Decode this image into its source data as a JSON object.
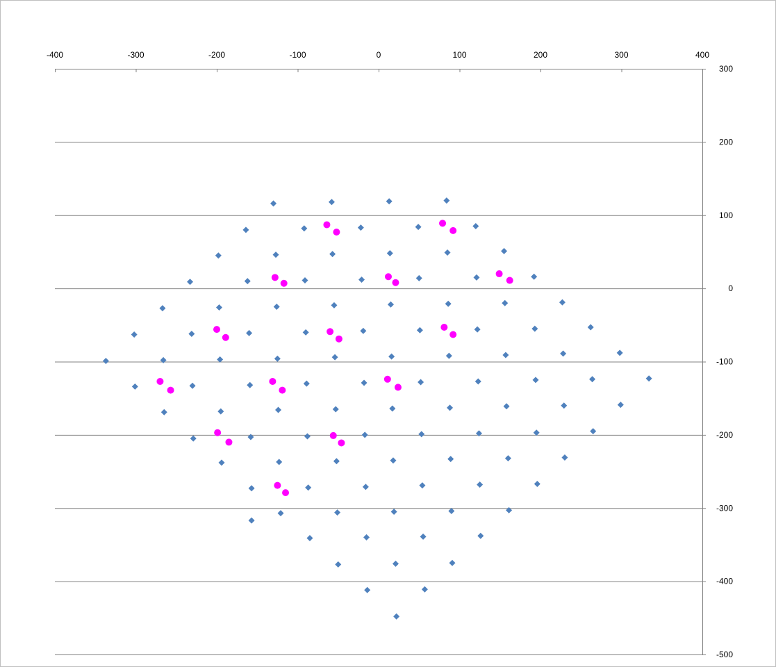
{
  "chart_data": {
    "type": "scatter",
    "title": "",
    "xlabel": "",
    "ylabel": "",
    "xlim": [
      -400,
      400
    ],
    "ylim": [
      -500,
      300
    ],
    "x_ticks": [
      -400,
      -300,
      -200,
      -100,
      0,
      100,
      200,
      300,
      400
    ],
    "y_ticks": [
      300,
      200,
      100,
      0,
      -100,
      -200,
      -300,
      -400,
      -500
    ],
    "x_axis_position": "top",
    "y_axis_position": "right",
    "grid": "horizontal",
    "legend": "none",
    "colors": {
      "series_blue": "#4f81bd",
      "series_magenta": "#ff00ff",
      "gridline": "#808080",
      "axis": "#808080"
    },
    "series": [
      {
        "marker": "diamond",
        "color": "#4f81bd",
        "points": [
          [
            -130,
            116
          ],
          [
            -58,
            118
          ],
          [
            13,
            119
          ],
          [
            84,
            120
          ],
          [
            -164,
            80
          ],
          [
            -92,
            82
          ],
          [
            -22,
            83
          ],
          [
            49,
            84
          ],
          [
            120,
            85
          ],
          [
            -198,
            45
          ],
          [
            -127,
            46
          ],
          [
            -57,
            47
          ],
          [
            14,
            48
          ],
          [
            85,
            49
          ],
          [
            155,
            51
          ],
          [
            -233,
            9
          ],
          [
            -162,
            10
          ],
          [
            -91,
            11
          ],
          [
            -21,
            12
          ],
          [
            50,
            14
          ],
          [
            121,
            15
          ],
          [
            192,
            16
          ],
          [
            -267,
            -27
          ],
          [
            -197,
            -26
          ],
          [
            -126,
            -25
          ],
          [
            -55,
            -23
          ],
          [
            15,
            -22
          ],
          [
            86,
            -21
          ],
          [
            156,
            -20
          ],
          [
            227,
            -19
          ],
          [
            -302,
            -63
          ],
          [
            -231,
            -62
          ],
          [
            -160,
            -61
          ],
          [
            -90,
            -60
          ],
          [
            -19,
            -58
          ],
          [
            51,
            -57
          ],
          [
            122,
            -56
          ],
          [
            193,
            -55
          ],
          [
            262,
            -53
          ],
          [
            -337,
            -99
          ],
          [
            -266,
            -98
          ],
          [
            -196,
            -97
          ],
          [
            -125,
            -96
          ],
          [
            -54,
            -94
          ],
          [
            16,
            -93
          ],
          [
            87,
            -92
          ],
          [
            157,
            -91
          ],
          [
            228,
            -89
          ],
          [
            298,
            -88
          ],
          [
            -301,
            -134
          ],
          [
            -230,
            -133
          ],
          [
            -159,
            -132
          ],
          [
            -89,
            -130
          ],
          [
            -18,
            -129
          ],
          [
            52,
            -128
          ],
          [
            123,
            -127
          ],
          [
            194,
            -125
          ],
          [
            264,
            -124
          ],
          [
            334,
            -123
          ],
          [
            -265,
            -169
          ],
          [
            -195,
            -168
          ],
          [
            -124,
            -166
          ],
          [
            -53,
            -165
          ],
          [
            17,
            -164
          ],
          [
            88,
            -163
          ],
          [
            158,
            -161
          ],
          [
            229,
            -160
          ],
          [
            299,
            -159
          ],
          [
            -229,
            -205
          ],
          [
            -158,
            -203
          ],
          [
            -88,
            -202
          ],
          [
            -17,
            -200
          ],
          [
            53,
            -199
          ],
          [
            124,
            -198
          ],
          [
            195,
            -197
          ],
          [
            265,
            -195
          ],
          [
            -194,
            -238
          ],
          [
            -123,
            -237
          ],
          [
            -52,
            -236
          ],
          [
            18,
            -235
          ],
          [
            89,
            -233
          ],
          [
            160,
            -232
          ],
          [
            230,
            -231
          ],
          [
            -157,
            -273
          ],
          [
            -87,
            -272
          ],
          [
            -16,
            -271
          ],
          [
            54,
            -269
          ],
          [
            125,
            -268
          ],
          [
            196,
            -267
          ],
          [
            -157,
            -317
          ],
          [
            -121,
            -307
          ],
          [
            -51,
            -306
          ],
          [
            19,
            -305
          ],
          [
            90,
            -304
          ],
          [
            161,
            -303
          ],
          [
            -85,
            -341
          ],
          [
            -15,
            -340
          ],
          [
            55,
            -339
          ],
          [
            126,
            -338
          ],
          [
            -50,
            -377
          ],
          [
            21,
            -376
          ],
          [
            91,
            -375
          ],
          [
            -14,
            -412
          ],
          [
            57,
            -411
          ],
          [
            22,
            -448
          ]
        ]
      },
      {
        "marker": "circle",
        "color": "#ff00ff",
        "points": [
          [
            -64,
            87
          ],
          [
            -52,
            77
          ],
          [
            79,
            89
          ],
          [
            92,
            79
          ],
          [
            -128,
            15
          ],
          [
            -117,
            7
          ],
          [
            12,
            16
          ],
          [
            21,
            8
          ],
          [
            149,
            20
          ],
          [
            162,
            11
          ],
          [
            -200,
            -56
          ],
          [
            -189,
            -67
          ],
          [
            -60,
            -59
          ],
          [
            -49,
            -69
          ],
          [
            81,
            -53
          ],
          [
            92,
            -63
          ],
          [
            -270,
            -127
          ],
          [
            -257,
            -139
          ],
          [
            -131,
            -127
          ],
          [
            -119,
            -139
          ],
          [
            11,
            -124
          ],
          [
            24,
            -135
          ],
          [
            -199,
            -197
          ],
          [
            -185,
            -210
          ],
          [
            -56,
            -201
          ],
          [
            -46,
            -211
          ],
          [
            -125,
            -269
          ],
          [
            -115,
            -279
          ]
        ]
      }
    ]
  }
}
